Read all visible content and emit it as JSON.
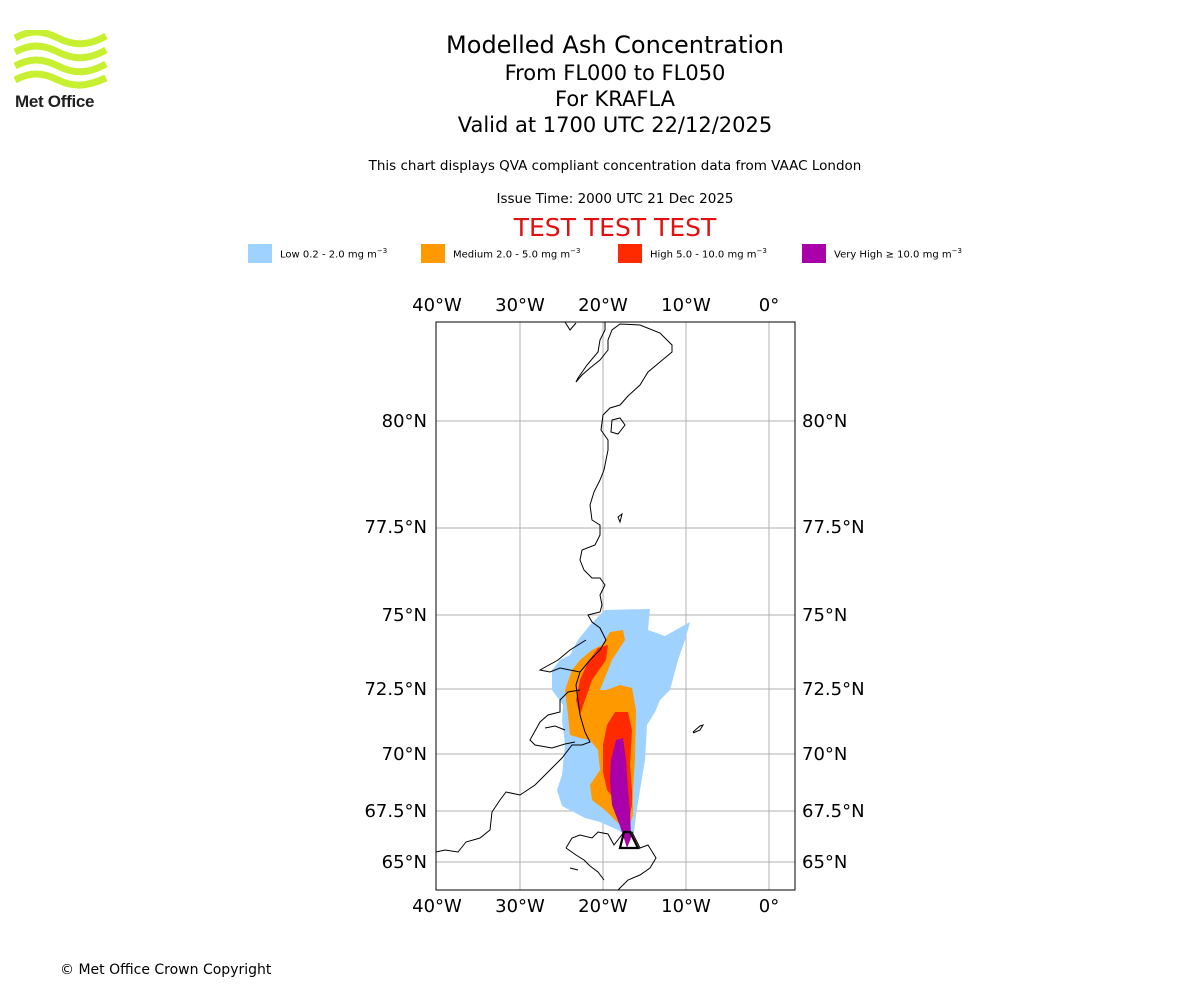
{
  "branding": {
    "name": "Met Office",
    "copyright": "© Met Office Crown Copyright",
    "logo_color": "#c8f032"
  },
  "header": {
    "title": "Modelled Ash Concentration",
    "level_range": "From FL000 to FL050",
    "volcano": "For KRAFLA",
    "valid_time": "Valid at 1700 UTC 22/12/2025",
    "description": "This chart displays QVA compliant concentration data from VAAC London",
    "issue_time": "Issue Time: 2000 UTC 21 Dec 2025",
    "test_banner": "TEST TEST TEST",
    "test_color": "#e01010"
  },
  "legend": [
    {
      "label": "Low 0.2 - 2.0 mg m",
      "color": "#a0d2ff"
    },
    {
      "label": "Medium 2.0 - 5.0 mg m",
      "color": "#ff9900"
    },
    {
      "label": "High 5.0 - 10.0 mg m",
      "color": "#ff2a00"
    },
    {
      "label": "Very High ≥ 10.0 mg m",
      "color": "#aa00aa"
    }
  ],
  "legend_unit_exponent": "−3",
  "map": {
    "longitude_ticks": [
      "40°W",
      "30°W",
      "20°W",
      "10°W",
      "0°"
    ],
    "latitude_ticks": [
      "80°N",
      "77.5°N",
      "75°N",
      "72.5°N",
      "70°N",
      "67.5°N",
      "65°N"
    ],
    "gridline_color": "#b0b0b0"
  }
}
